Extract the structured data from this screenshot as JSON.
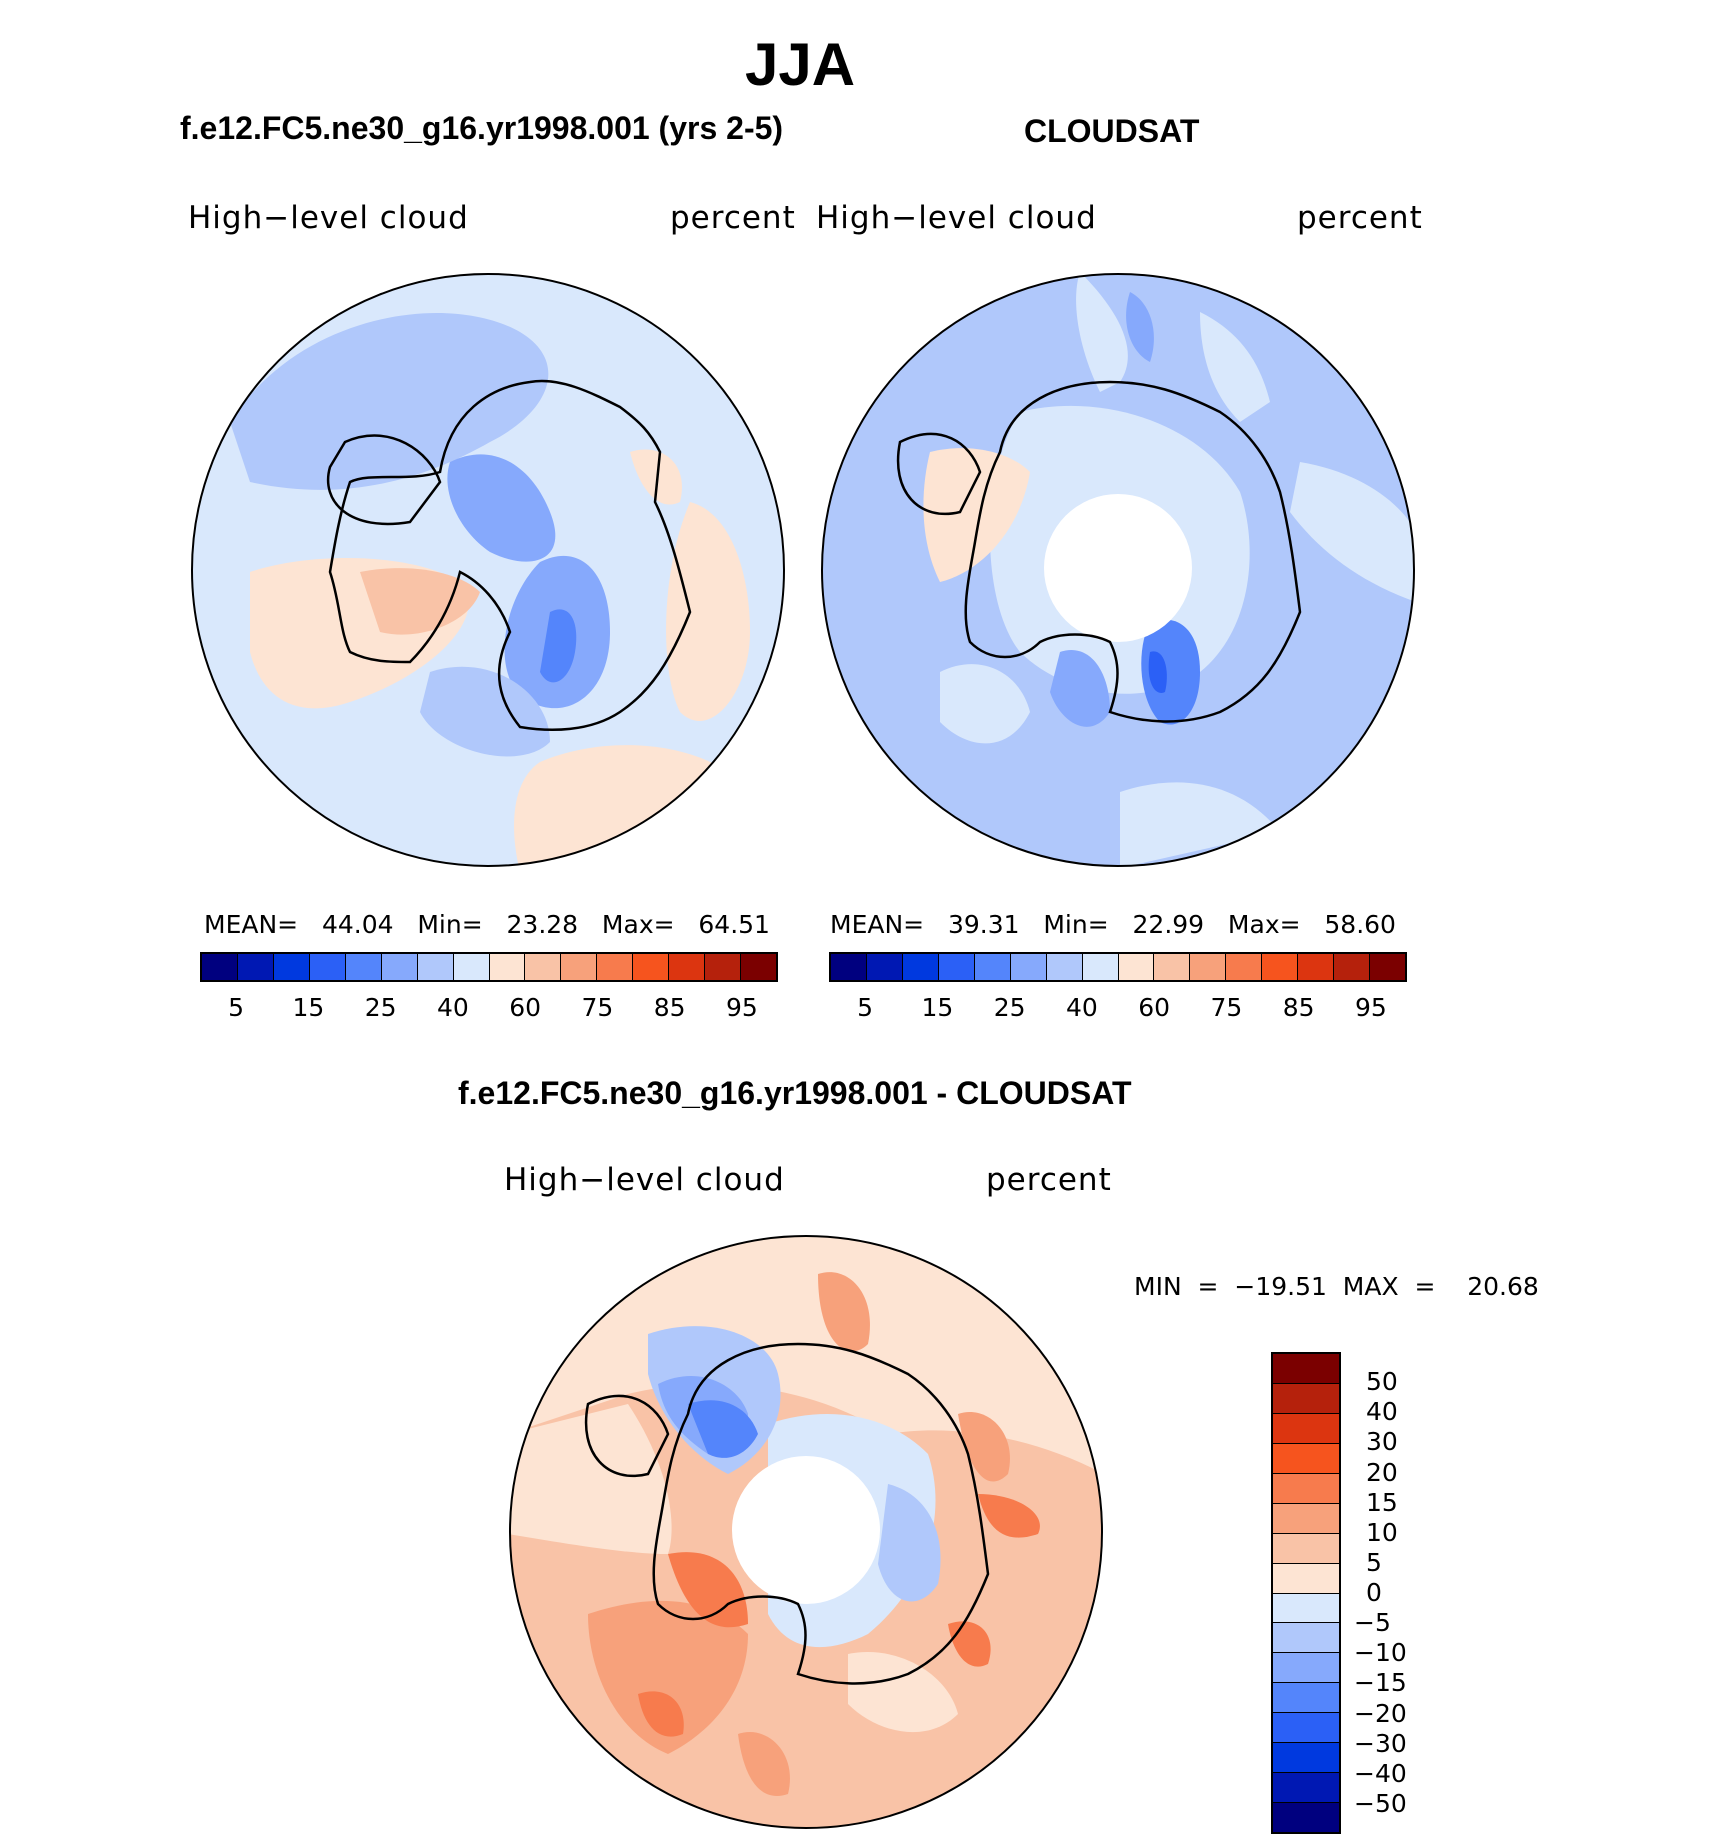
{
  "title": "JJA",
  "panels": {
    "model": {
      "heading": "f.e12.FC5.ne30_g16.yr1998.001 (yrs 2-5)",
      "variable": "High−level cloud",
      "units": "percent",
      "stats": "MEAN=   44.04   Min=   23.28   Max=   64.51"
    },
    "obs": {
      "heading": "CLOUDSAT",
      "variable": "High−level cloud",
      "units": "percent",
      "stats": "MEAN=   39.31   Min=   22.99   Max=   58.60"
    },
    "diff": {
      "heading": "f.e12.FC5.ne30_g16.yr1998.001 - CLOUDSAT",
      "variable": "High−level cloud",
      "units": "percent",
      "stats": "MIN  =  −19.51  MAX  =    20.68"
    }
  },
  "colorbar_main": {
    "colors": [
      "#00007f",
      "#0018b3",
      "#0039df",
      "#2b60f6",
      "#5485fb",
      "#86a9fc",
      "#b0c8fb",
      "#d9e8fc",
      "#fde4d3",
      "#f9c3a7",
      "#f7a17b",
      "#f77b4d",
      "#f6541e",
      "#dc3510",
      "#b5210c",
      "#7b0000"
    ],
    "ticks": [
      "5",
      "15",
      "25",
      "40",
      "60",
      "75",
      "85",
      "95"
    ]
  },
  "colorbar_diff": {
    "colors": [
      "#7b0000",
      "#b5210c",
      "#dc3510",
      "#f6541e",
      "#f77b4d",
      "#f7a17b",
      "#f9c3a7",
      "#fde4d3",
      "#d9e8fc",
      "#b0c8fb",
      "#86a9fc",
      "#5485fb",
      "#2b60f6",
      "#0039df",
      "#0018b3",
      "#00007f"
    ],
    "ticks": [
      "50",
      "40",
      "30",
      "20",
      "15",
      "10",
      "5",
      "0",
      "−5",
      "−10",
      "−15",
      "−20",
      "−30",
      "−40",
      "−50"
    ]
  }
}
